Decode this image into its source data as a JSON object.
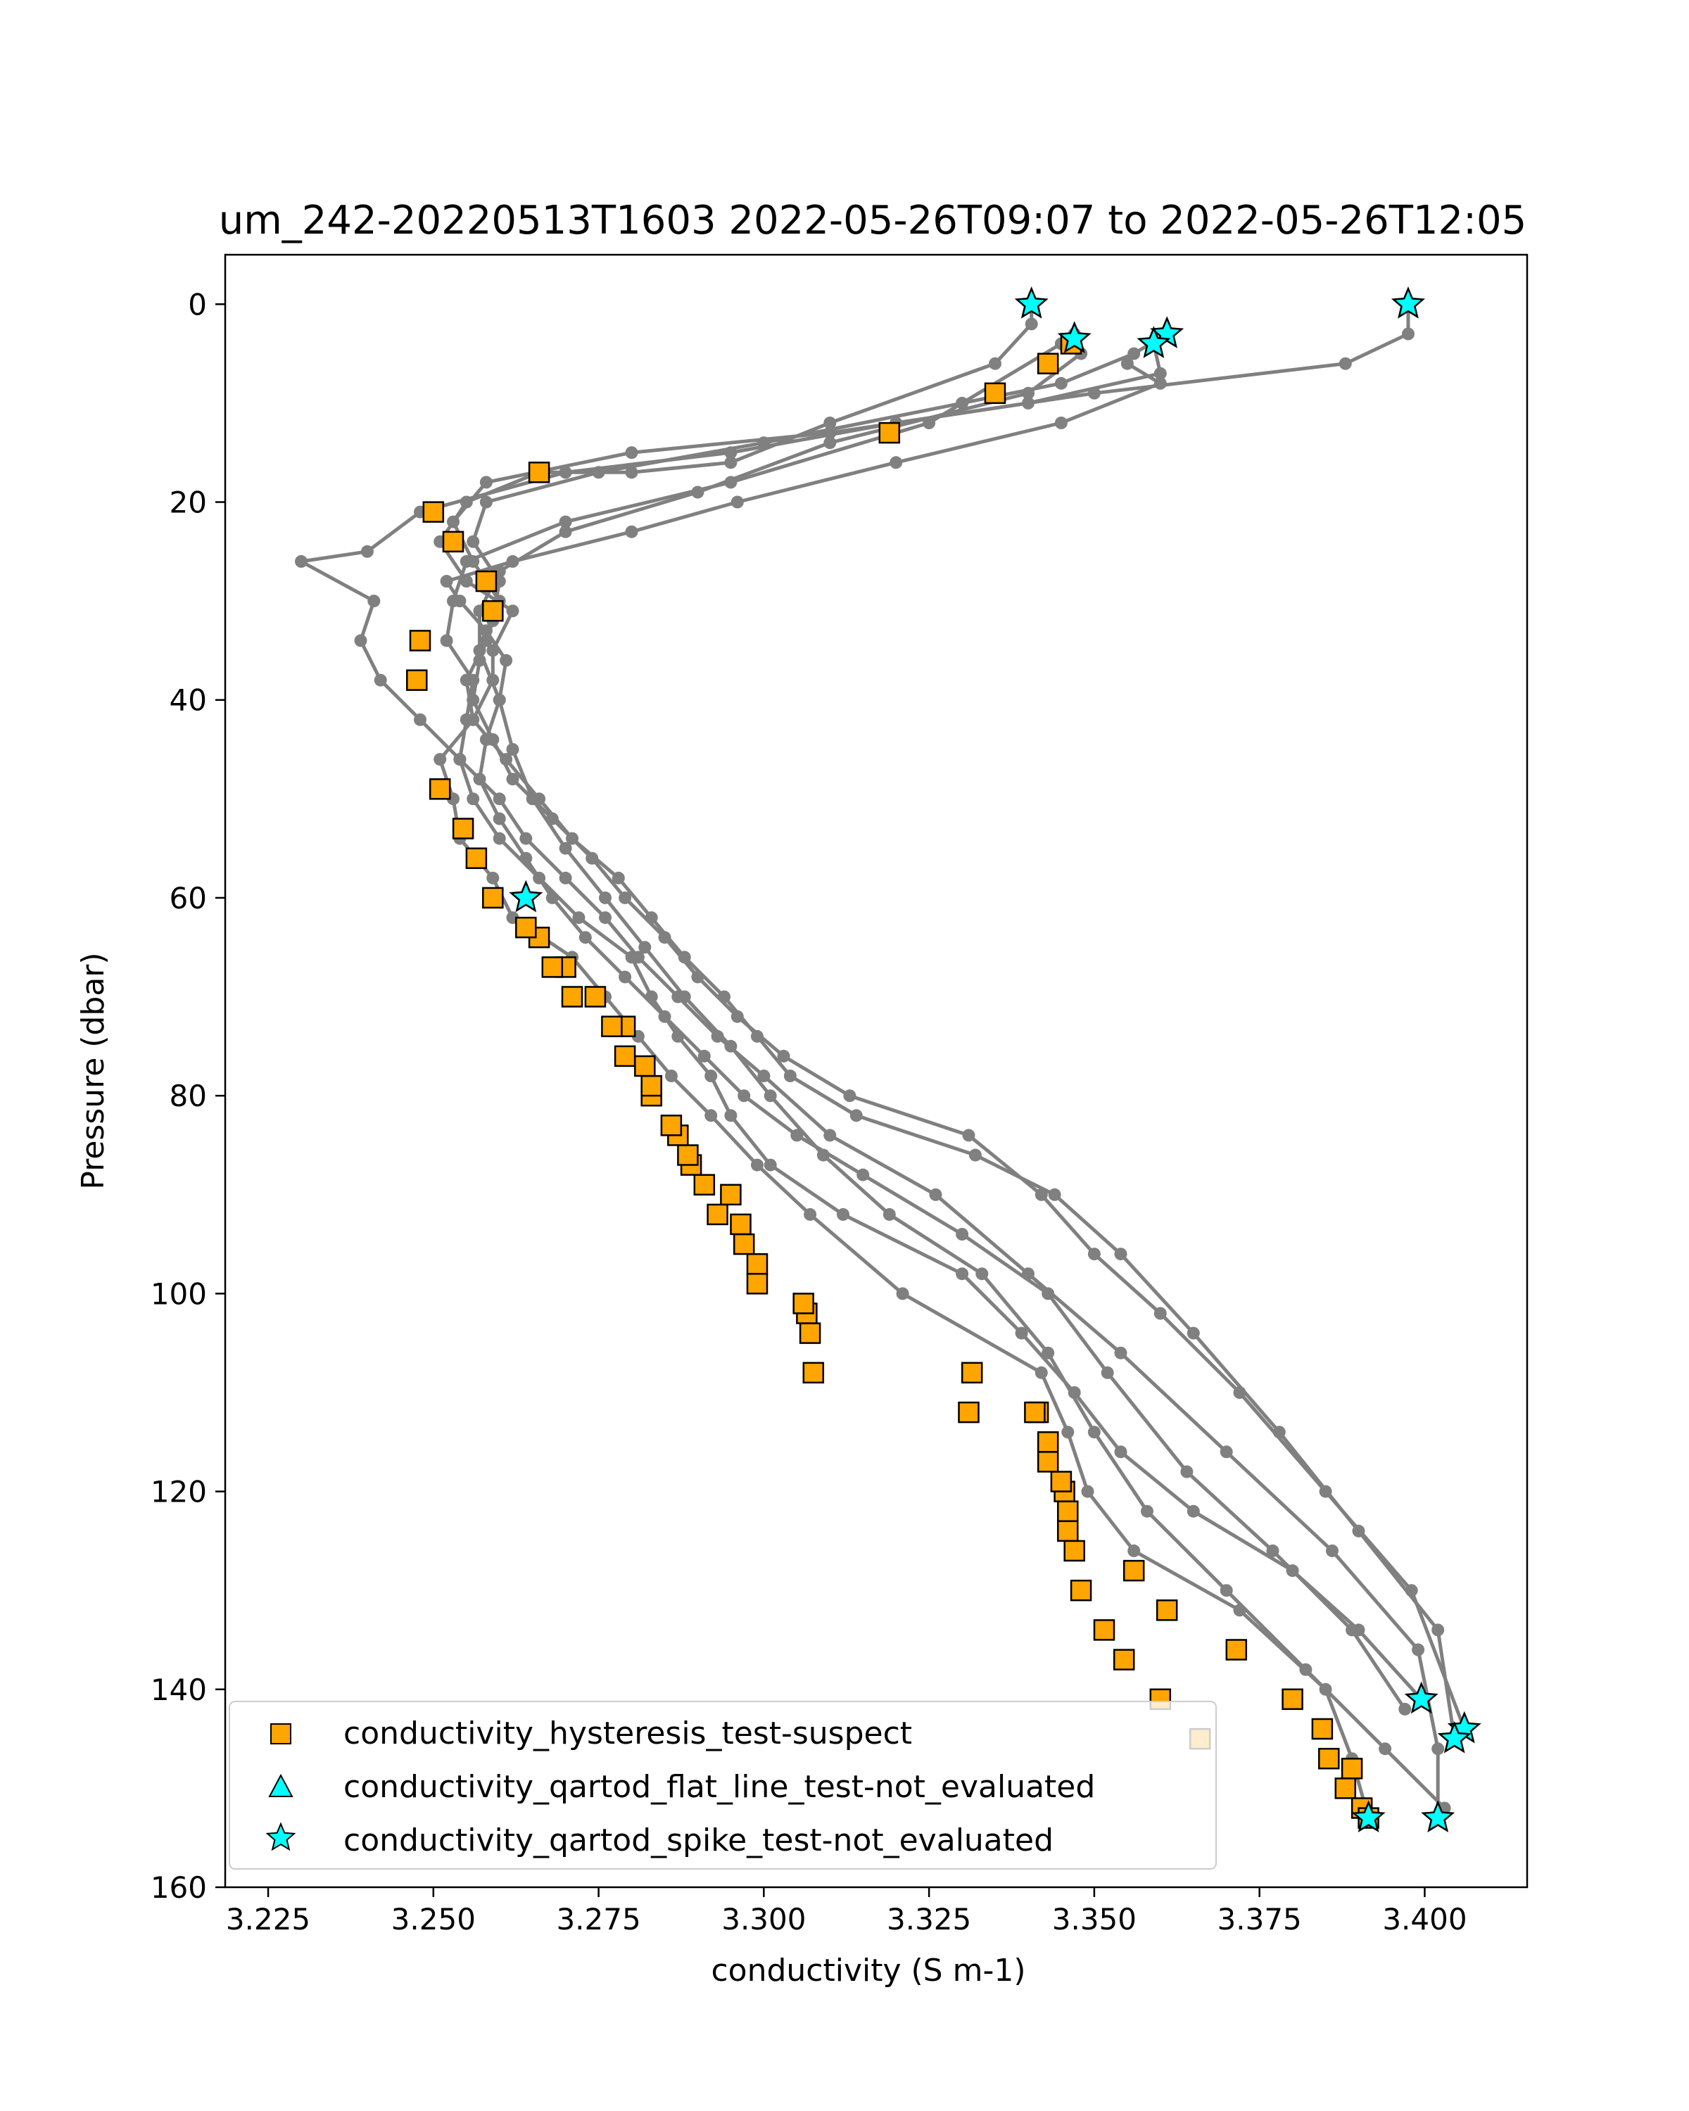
{
  "chart_data": {
    "type": "scatter",
    "title": "um_242-20220513T1603 2022-05-26T09:07 to 2022-05-26T12:05",
    "xlabel": "conductivity (S m-1)",
    "ylabel": "Pressure (dbar)",
    "xlim": [
      3.2185,
      3.4155
    ],
    "ylim": [
      160,
      -5
    ],
    "y_inverted": true,
    "xticks": [
      "3.225",
      "3.250",
      "3.275",
      "3.300",
      "3.325",
      "3.350",
      "3.375",
      "3.400"
    ],
    "xtick_values": [
      3.225,
      3.25,
      3.275,
      3.3,
      3.325,
      3.35,
      3.375,
      3.4
    ],
    "yticks": [
      "0",
      "20",
      "40",
      "60",
      "80",
      "100",
      "120",
      "140",
      "160"
    ],
    "ytick_values": [
      0,
      20,
      40,
      60,
      80,
      100,
      120,
      140,
      160
    ],
    "grid": false,
    "legend_position": "lower-left",
    "colors": {
      "profile": "#808080",
      "hysteresis": "#FFA500",
      "flat_line": "#00FFFF",
      "spike": "#00FFFF",
      "edge": "#000000"
    },
    "profiles": [
      {
        "x": [
          3.3405,
          3.3405,
          3.335,
          3.31,
          3.295,
          3.28,
          3.266,
          3.255,
          3.251,
          3.255,
          3.262,
          3.259,
          3.259,
          3.256,
          3.251,
          3.253,
          3.254,
          3.259,
          3.262,
          3.271,
          3.276,
          3.281,
          3.286,
          3.292,
          3.299,
          3.307,
          3.321,
          3.342,
          3.346,
          3.349,
          3.356,
          3.372,
          3.385,
          3.389,
          3.3915
        ],
        "y": [
          0,
          2,
          6,
          12,
          16,
          17,
          17,
          20,
          24,
          28,
          31,
          35,
          38,
          42,
          46,
          50,
          54,
          58,
          62,
          66,
          70,
          74,
          78,
          82,
          87,
          92,
          100,
          108,
          114,
          120,
          126,
          132,
          140,
          147,
          153
        ]
      },
      {
        "x": [
          3.347,
          3.345,
          3.325,
          3.295,
          3.27,
          3.255,
          3.253,
          3.252,
          3.256,
          3.255,
          3.254,
          3.256,
          3.26,
          3.266,
          3.272,
          3.28,
          3.283,
          3.287,
          3.292,
          3.295,
          3.301,
          3.312,
          3.33,
          3.339,
          3.347,
          3.354,
          3.365,
          3.38,
          3.39,
          3.3995
        ],
        "y": [
          3,
          4,
          12,
          18,
          22,
          26,
          30,
          34,
          38,
          42,
          46,
          50,
          54,
          58,
          62,
          66,
          70,
          74,
          78,
          82,
          87,
          92,
          98,
          104,
          110,
          116,
          122,
          128,
          134,
          141
        ]
      },
      {
        "x": [
          3.361,
          3.356,
          3.345,
          3.33,
          3.3,
          3.275,
          3.258,
          3.256,
          3.26,
          3.259,
          3.257,
          3.256,
          3.259,
          3.262,
          3.268,
          3.274,
          3.279,
          3.285,
          3.29,
          3.296,
          3.303,
          3.313,
          3.331,
          3.342,
          3.35,
          3.36,
          3.372,
          3.385,
          3.398,
          3.406
        ],
        "y": [
          3,
          5,
          8,
          10,
          14,
          17,
          20,
          24,
          28,
          32,
          36,
          40,
          44,
          48,
          52,
          56,
          60,
          64,
          68,
          72,
          76,
          80,
          84,
          90,
          96,
          102,
          110,
          120,
          130,
          144
        ]
      },
      {
        "x": [
          3.359,
          3.36,
          3.34,
          3.31,
          3.28,
          3.258,
          3.253,
          3.256,
          3.26,
          3.258,
          3.255,
          3.256,
          3.261,
          3.266,
          3.271,
          3.278,
          3.283,
          3.288,
          3.294,
          3.299,
          3.304,
          3.314,
          3.332,
          3.344,
          3.354,
          3.365,
          3.378,
          3.39,
          3.402,
          3.4045
        ],
        "y": [
          4,
          7,
          10,
          13,
          15,
          18,
          22,
          26,
          30,
          34,
          38,
          42,
          46,
          50,
          54,
          58,
          62,
          66,
          70,
          74,
          78,
          82,
          86,
          90,
          96,
          104,
          114,
          124,
          134,
          145
        ]
      },
      {
        "x": [
          3.3975,
          3.3975,
          3.388,
          3.35,
          3.32,
          3.295,
          3.27,
          3.248,
          3.24,
          3.23,
          3.241,
          3.239,
          3.242,
          3.248,
          3.254,
          3.26,
          3.264,
          3.27,
          3.276,
          3.281,
          3.287,
          3.293,
          3.3,
          3.31,
          3.326,
          3.34,
          3.354,
          3.37,
          3.386,
          3.399,
          3.402,
          3.402
        ],
        "y": [
          0,
          3,
          6,
          9,
          12,
          15,
          17,
          21,
          25,
          26,
          30,
          34,
          38,
          42,
          46,
          50,
          54,
          58,
          62,
          66,
          70,
          74,
          78,
          84,
          90,
          98,
          106,
          116,
          126,
          136,
          146,
          153
        ]
      },
      {
        "x": [
          3.355,
          3.36,
          3.345,
          3.32,
          3.296,
          3.28,
          3.262,
          3.252,
          3.254,
          3.258,
          3.261,
          3.26,
          3.258,
          3.257,
          3.26,
          3.264,
          3.268,
          3.273,
          3.279,
          3.285,
          3.291,
          3.297,
          3.305,
          3.315,
          3.33,
          3.343,
          3.352,
          3.364,
          3.377,
          3.389,
          3.397
        ],
        "y": [
          6,
          8,
          12,
          16,
          20,
          23,
          26,
          28,
          30,
          33,
          36,
          40,
          44,
          48,
          52,
          56,
          60,
          64,
          68,
          72,
          76,
          80,
          84,
          88,
          94,
          100,
          108,
          118,
          126,
          134,
          142
        ]
      },
      {
        "x": [
          3.348,
          3.34,
          3.31,
          3.29,
          3.27,
          3.26,
          3.257,
          3.257,
          3.26,
          3.262,
          3.265,
          3.27,
          3.276,
          3.282,
          3.288,
          3.295,
          3.301,
          3.309,
          3.319,
          3.333,
          3.343,
          3.35,
          3.358,
          3.37,
          3.382,
          3.394,
          3.403
        ],
        "y": [
          5,
          9,
          14,
          19,
          23,
          27,
          31,
          35,
          40,
          45,
          50,
          55,
          60,
          65,
          70,
          75,
          80,
          86,
          92,
          98,
          106,
          114,
          122,
          130,
          138,
          146,
          152
        ]
      }
    ],
    "series": [
      {
        "name": "conductivity_hysteresis_test-suspect",
        "marker": "square",
        "x": [
          3.366,
          3.36,
          3.3545,
          3.3515,
          3.348,
          3.347,
          3.346,
          3.346,
          3.3455,
          3.345,
          3.343,
          3.343,
          3.3415,
          3.331,
          3.3075,
          3.307,
          3.3065,
          3.306,
          3.299,
          3.299,
          3.297,
          3.2965,
          3.293,
          3.295,
          3.291,
          3.289,
          3.2885,
          3.287,
          3.286,
          3.283,
          3.283,
          3.282,
          3.279,
          3.279,
          3.277,
          3.2745,
          3.271,
          3.27,
          3.268,
          3.266,
          3.264,
          3.259,
          3.2565,
          3.2545,
          3.251,
          3.2475,
          3.248,
          3.259,
          3.258,
          3.253,
          3.25,
          3.266,
          3.319,
          3.335,
          3.343,
          3.3465,
          3.3315,
          3.341,
          3.356,
          3.361,
          3.3715,
          3.38,
          3.3845,
          3.3855,
          3.389,
          3.388,
          3.3905,
          3.3915
        ],
        "y": [
          145,
          141,
          137,
          134,
          130,
          126,
          124,
          122,
          120,
          119,
          117,
          115,
          112,
          112,
          108,
          104,
          102,
          101,
          99,
          97,
          95,
          93,
          92,
          90,
          89,
          87,
          86,
          84,
          83,
          80,
          79,
          77,
          76,
          73,
          73,
          70,
          70,
          67,
          67,
          64,
          63,
          60,
          56,
          53,
          49,
          38,
          34,
          31,
          28,
          24,
          21,
          17,
          13,
          9,
          6,
          4,
          108,
          112,
          128,
          132,
          136,
          141,
          144,
          147,
          148,
          150,
          152,
          153
        ]
      },
      {
        "name": "conductivity_qartod_flat_line_test-not_evaluated",
        "marker": "triangle",
        "x": [],
        "y": []
      },
      {
        "name": "conductivity_qartod_spike_test-not_evaluated",
        "marker": "star",
        "x": [
          3.3405,
          3.347,
          3.361,
          3.359,
          3.3975,
          3.264,
          3.3995,
          3.406,
          3.4045,
          3.402,
          3.3915
        ],
        "y": [
          0,
          3.5,
          3,
          4,
          0,
          60,
          141,
          144,
          145,
          153,
          153
        ]
      }
    ]
  }
}
